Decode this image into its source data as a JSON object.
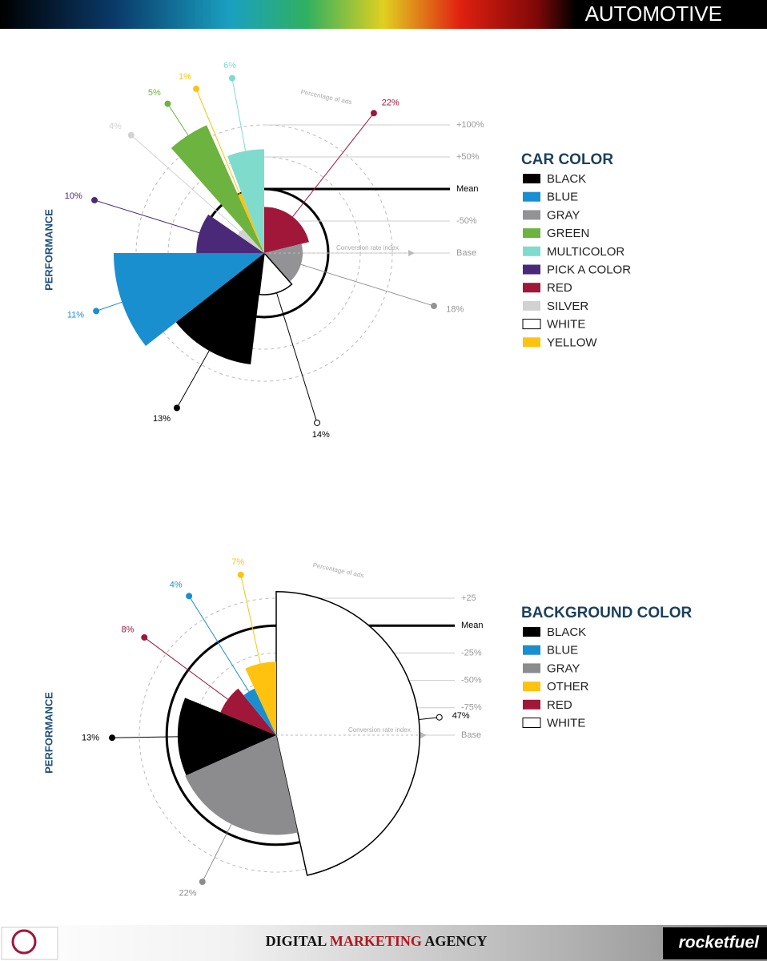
{
  "header": {
    "title": "AUTOMOTIVE"
  },
  "chart_data": [
    {
      "type": "polar",
      "title": "CAR COLOR",
      "y_label": "PERFORMANCE",
      "angle_label": "Percentage of ads",
      "radius_label": "Conversion rate index",
      "categories": [
        "RED",
        "GRAY",
        "WHITE",
        "BLACK",
        "BLUE",
        "PICK A COLOR",
        "SILVER",
        "GREEN",
        "YELLOW",
        "MULTICOLOR"
      ],
      "values": [
        22,
        18,
        14,
        13,
        11,
        10,
        4,
        5,
        1,
        6
      ],
      "value_labels": [
        "22%",
        "18%",
        "14%",
        "13%",
        "11%",
        "10%",
        "4%",
        "5%",
        "1%",
        "6%"
      ],
      "performance": [
        -28,
        -40,
        -35,
        75,
        135,
        6,
        -50,
        119,
        0,
        62
      ],
      "colors": [
        "#a0173a",
        "#939395",
        "#ffffff",
        "#000000",
        "#1a8fcf",
        "#4a2a78",
        "#d2d2d2",
        "#6db33f",
        "#ffc20e",
        "#7fdccd"
      ],
      "rlim": [
        -100,
        100
      ],
      "rticks": [
        {
          "value": 100,
          "label": "+100%"
        },
        {
          "value": 50,
          "label": "+50%"
        },
        {
          "value": 0,
          "label": "Mean"
        },
        {
          "value": -50,
          "label": "-50%"
        },
        {
          "value": -100,
          "label": "Base"
        }
      ]
    },
    {
      "type": "polar",
      "title": "BACKGROUND COLOR",
      "y_label": "PERFORMANCE",
      "angle_label": "Percentage of ads",
      "radius_label": "Conversion rate index",
      "categories": [
        "WHITE",
        "GRAY",
        "BLACK",
        "RED",
        "BLUE",
        "OTHER"
      ],
      "values": [
        47,
        22,
        13,
        8,
        4,
        7
      ],
      "value_labels": [
        "47%",
        "22%",
        "13%",
        "8%",
        "4%",
        "7%"
      ],
      "performance": [
        31,
        -9,
        -10,
        -45,
        -53,
        -33
      ],
      "colors": [
        "#ffffff",
        "#8c8c8e",
        "#000000",
        "#a0173a",
        "#1a8fcf",
        "#ffc20e"
      ],
      "rlim": [
        -100,
        25
      ],
      "rticks": [
        {
          "value": 25,
          "label": "+25"
        },
        {
          "value": 0,
          "label": "Mean"
        },
        {
          "value": -25,
          "label": "-25%"
        },
        {
          "value": -50,
          "label": "-50%"
        },
        {
          "value": -75,
          "label": "-75%"
        },
        {
          "value": -100,
          "label": "Base"
        }
      ]
    }
  ],
  "footer": {
    "left": "DIGITAL",
    "middle": "MARKETING",
    "right": "AGENCY",
    "brand": "rocketfuel"
  }
}
